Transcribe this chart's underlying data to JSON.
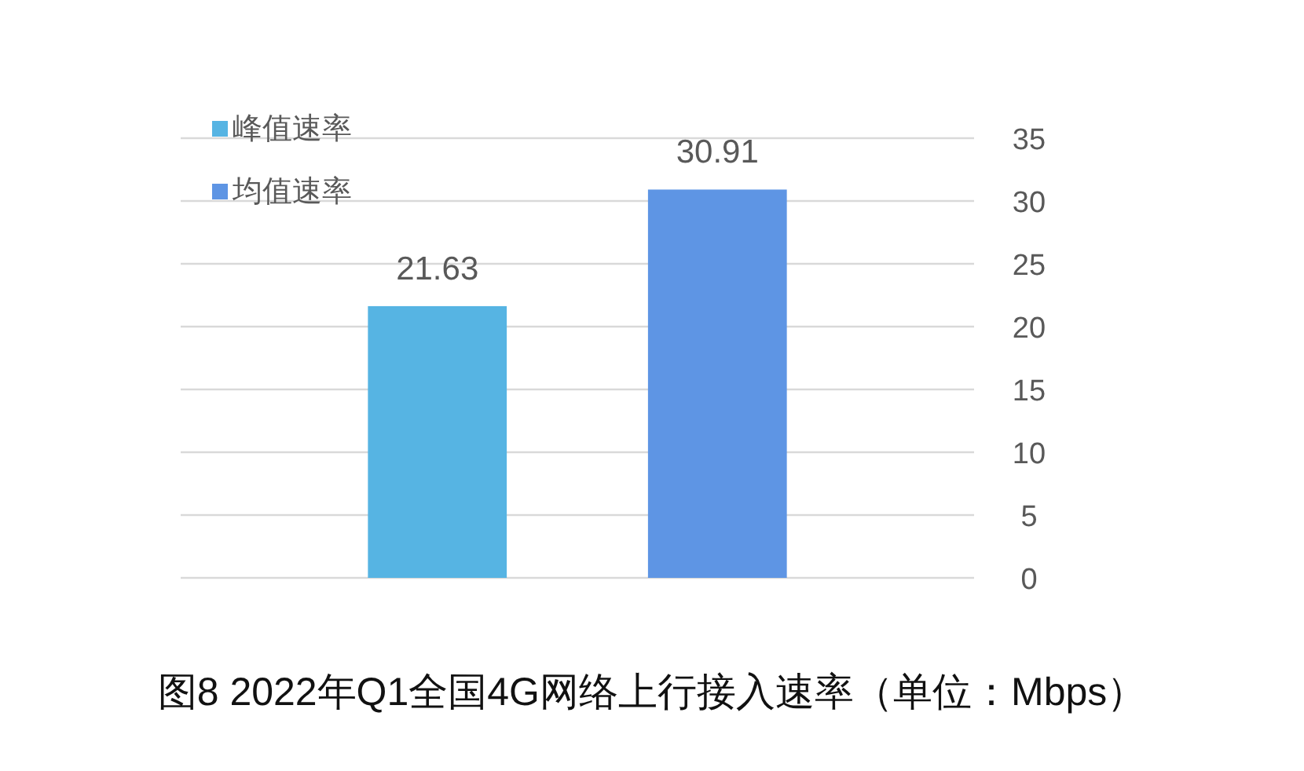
{
  "chart_data": {
    "type": "bar",
    "title": "图8 2022年Q1全国4G网络上行接入速率（单位：Mbps）",
    "categories": [
      null
    ],
    "series": [
      {
        "name": "峰值速率",
        "color": "#56b4e3",
        "values": [
          21.63
        ]
      },
      {
        "name": "均值速率",
        "color": "#5e95e4",
        "values": [
          30.91
        ]
      }
    ],
    "ylim": [
      0,
      35
    ],
    "yticks": [
      0,
      5,
      10,
      15,
      20,
      25,
      30,
      35
    ],
    "grid": "y",
    "legend": "top left",
    "data_labels": true
  }
}
